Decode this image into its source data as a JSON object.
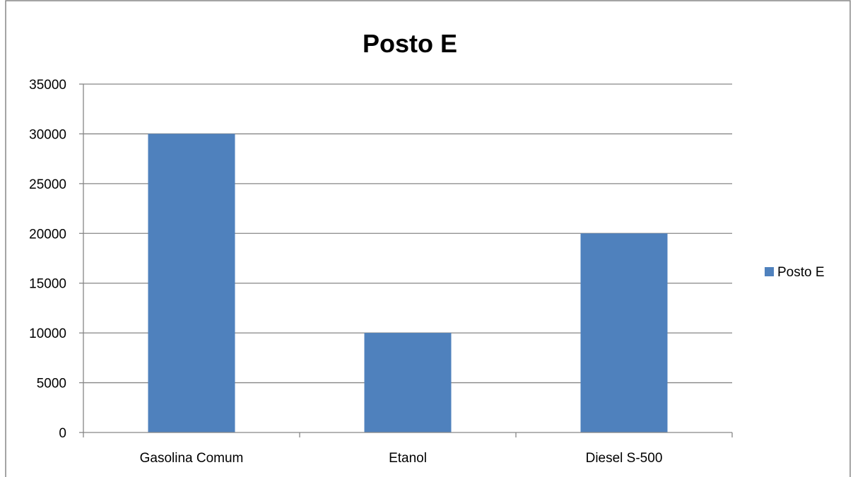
{
  "chart_data": {
    "type": "bar",
    "title": "Posto E",
    "xlabel": "",
    "ylabel": "",
    "categories": [
      "Gasolina Comum",
      "Etanol",
      "Diesel S-500"
    ],
    "series": [
      {
        "name": "Posto E",
        "values": [
          30000,
          10000,
          20000
        ],
        "color": "#4F81BD"
      }
    ],
    "ylim": [
      0,
      35000
    ],
    "yticks": [
      0,
      5000,
      10000,
      15000,
      20000,
      25000,
      30000,
      35000
    ],
    "grid": true,
    "legend_position": "right"
  },
  "colors": {
    "bar": "#4F81BD",
    "gridline": "#868686",
    "axis": "#868686",
    "frame": "#868686"
  }
}
